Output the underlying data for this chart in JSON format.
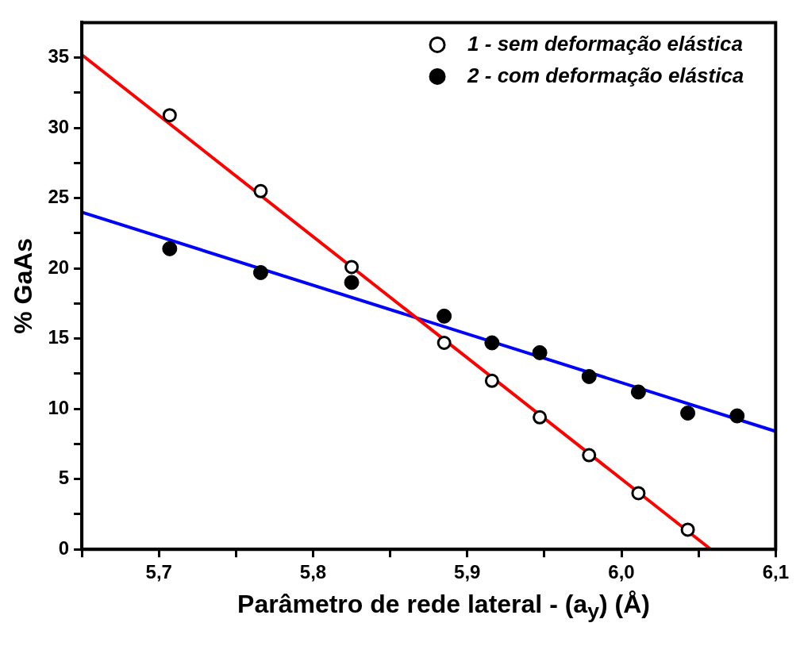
{
  "chart_data": {
    "type": "scatter",
    "xlabel": "Parâmetro de rede lateral - (a$_{y}$) (Å)",
    "ylabel": "% GaAs",
    "xlim": [
      5.65,
      6.1
    ],
    "xticks": [
      {
        "value": 5.65,
        "label": null
      },
      {
        "value": 5.7,
        "label": "5,7"
      },
      {
        "value": 5.75,
        "label": null
      },
      {
        "value": 5.8,
        "label": "5,8"
      },
      {
        "value": 5.85,
        "label": null
      },
      {
        "value": 5.9,
        "label": "5,9"
      },
      {
        "value": 5.95,
        "label": null
      },
      {
        "value": 6.0,
        "label": "6,0"
      },
      {
        "value": 6.05,
        "label": null
      },
      {
        "value": 6.1,
        "label": "6,1"
      }
    ],
    "ylim": [
      0,
      37.5
    ],
    "yticks": [
      0,
      {
        "value": 2.5,
        "label": null
      },
      5,
      {
        "value": 7.5,
        "label": null
      },
      10,
      {
        "value": 12.5,
        "label": null
      },
      15,
      {
        "value": 17.5,
        "label": null
      },
      20,
      {
        "value": 22.5,
        "label": null
      },
      25,
      {
        "value": 27.5,
        "label": null
      },
      30,
      {
        "value": 32.5,
        "label": null
      },
      35
    ],
    "legend": "top right",
    "grid": false,
    "series": [
      {
        "name": "1 - sem deformação elástica",
        "marker": "circle-open",
        "color": "#000000",
        "x": [
          5.707,
          5.766,
          5.825,
          5.885,
          5.916,
          5.947,
          5.979,
          6.011,
          6.043
        ],
        "values": [
          30.9,
          25.5,
          20.1,
          14.7,
          12.0,
          9.4,
          6.7,
          4.0,
          1.4
        ]
      },
      {
        "name": "2 - com deformação elástica",
        "marker": "circle",
        "color": "#000000",
        "x": [
          5.707,
          5.766,
          5.825,
          5.885,
          5.916,
          5.947,
          5.979,
          6.011,
          6.043,
          6.075
        ],
        "values": [
          21.4,
          19.7,
          19.0,
          16.6,
          14.7,
          14.0,
          12.3,
          11.2,
          9.7,
          9.5
        ]
      },
      {
        "type": "line",
        "marker": "none",
        "color": "#ff0000",
        "x": [
          5.65,
          6.058
        ],
        "values": [
          35.2,
          0
        ]
      },
      {
        "type": "line",
        "marker": "none",
        "color": "#0000ff",
        "x": [
          5.65,
          6.1
        ],
        "values": [
          24.0,
          8.4
        ]
      }
    ]
  }
}
